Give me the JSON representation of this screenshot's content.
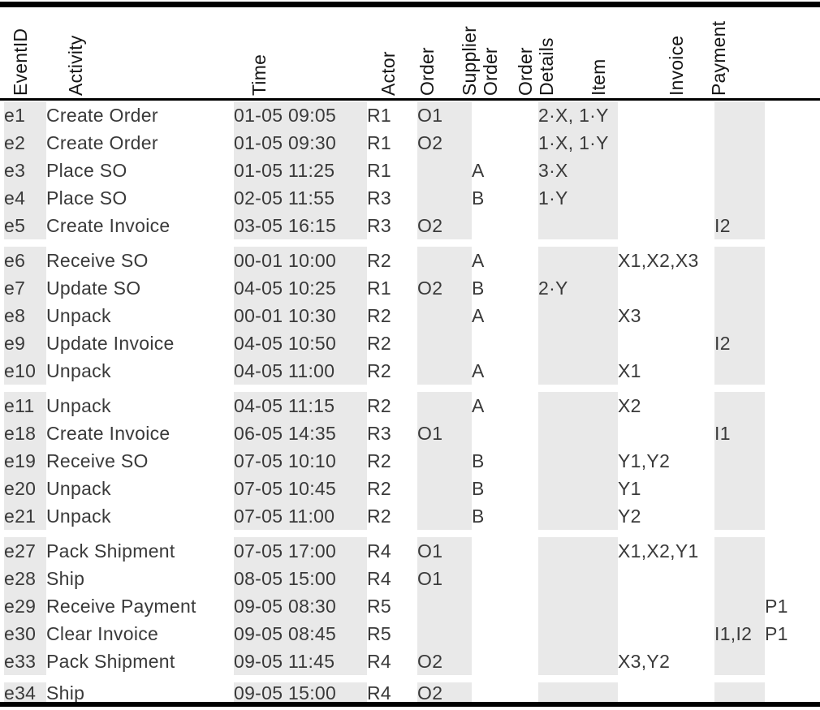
{
  "colors": {
    "column_shading": "#e9e9e9",
    "rule": "#000000",
    "body_text": "#3a3a3a",
    "header_text": "#161616"
  },
  "table": {
    "columns": [
      {
        "id": "event_id",
        "label": "EventID",
        "shaded": true
      },
      {
        "id": "activity",
        "label": "Activity",
        "shaded": false
      },
      {
        "id": "time",
        "label": "Time",
        "shaded": true
      },
      {
        "id": "actor",
        "label": "Actor",
        "shaded": false
      },
      {
        "id": "order",
        "label": "Order",
        "shaded": true
      },
      {
        "id": "supplier_order",
        "label": "Supplier\nOrder",
        "shaded": false
      },
      {
        "id": "order_details",
        "label": "Order\nDetails",
        "shaded": true
      },
      {
        "id": "item",
        "label": "Item",
        "shaded": false
      },
      {
        "id": "invoice",
        "label": "Invoice",
        "shaded": true
      },
      {
        "id": "payment",
        "label": "Payment",
        "shaded": false
      }
    ],
    "row_groups": [
      [
        [
          "e1",
          "Create Order",
          "01-05 09:05",
          "R1",
          "O1",
          "",
          "2·X, 1·Y",
          "",
          "",
          ""
        ],
        [
          "e2",
          "Create Order",
          "01-05 09:30",
          "R1",
          "O2",
          "",
          "1·X, 1·Y",
          "",
          "",
          ""
        ],
        [
          "e3",
          "Place SO",
          "01-05 11:25",
          "R1",
          "",
          "A",
          "3·X",
          "",
          "",
          ""
        ],
        [
          "e4",
          "Place SO",
          "02-05 11:55",
          "R3",
          "",
          "B",
          "1·Y",
          "",
          "",
          ""
        ],
        [
          "e5",
          "Create Invoice",
          "03-05 16:15",
          "R3",
          "O2",
          "",
          "",
          "",
          "I2",
          ""
        ]
      ],
      [
        [
          "e6",
          "Receive SO",
          "00-01 10:00",
          "R2",
          "",
          "A",
          "",
          "X1,X2,X3",
          "",
          ""
        ],
        [
          "e7",
          "Update SO",
          "04-05 10:25",
          "R1",
          "O2",
          "B",
          "2·Y",
          "",
          "",
          ""
        ],
        [
          "e8",
          "Unpack",
          "00-01 10:30",
          "R2",
          "",
          "A",
          "",
          "X3",
          "",
          ""
        ],
        [
          "e9",
          "Update Invoice",
          "04-05 10:50",
          "R2",
          "",
          "",
          "",
          "",
          "I2",
          ""
        ],
        [
          "e10",
          "Unpack",
          "04-05 11:00",
          "R2",
          "",
          "A",
          "",
          "X1",
          "",
          ""
        ]
      ],
      [
        [
          "e11",
          "Unpack",
          "04-05 11:15",
          "R2",
          "",
          "A",
          "",
          "X2",
          "",
          ""
        ],
        [
          "e18",
          "Create Invoice",
          "06-05 14:35",
          "R3",
          "O1",
          "",
          "",
          "",
          "I1",
          ""
        ],
        [
          "e19",
          "Receive SO",
          "07-05 10:10",
          "R2",
          "",
          "B",
          "",
          "Y1,Y2",
          "",
          ""
        ],
        [
          "e20",
          "Unpack",
          "07-05 10:45",
          "R2",
          "",
          "B",
          "",
          "Y1",
          "",
          ""
        ],
        [
          "e21",
          "Unpack",
          "07-05 11:00",
          "R2",
          "",
          "B",
          "",
          "Y2",
          "",
          ""
        ]
      ],
      [
        [
          "e27",
          "Pack Shipment",
          "07-05 17:00",
          "R4",
          "O1",
          "",
          "",
          "X1,X2,Y1",
          "",
          ""
        ],
        [
          "e28",
          "Ship",
          "08-05 15:00",
          "R4",
          "O1",
          "",
          "",
          "",
          "",
          ""
        ],
        [
          "e29",
          "Receive Payment",
          "09-05 08:30",
          "R5",
          "",
          "",
          "",
          "",
          "",
          "P1"
        ],
        [
          "e30",
          "Clear Invoice",
          "09-05 08:45",
          "R5",
          "",
          "",
          "",
          "",
          "I1,I2",
          "P1"
        ],
        [
          "e33",
          "Pack Shipment",
          "09-05 11:45",
          "R4",
          "O2",
          "",
          "",
          "X3,Y2",
          "",
          ""
        ]
      ],
      [
        [
          "e34",
          "Ship",
          "09-05 15:00",
          "R4",
          "O2",
          "",
          "",
          "",
          "",
          ""
        ]
      ]
    ]
  }
}
